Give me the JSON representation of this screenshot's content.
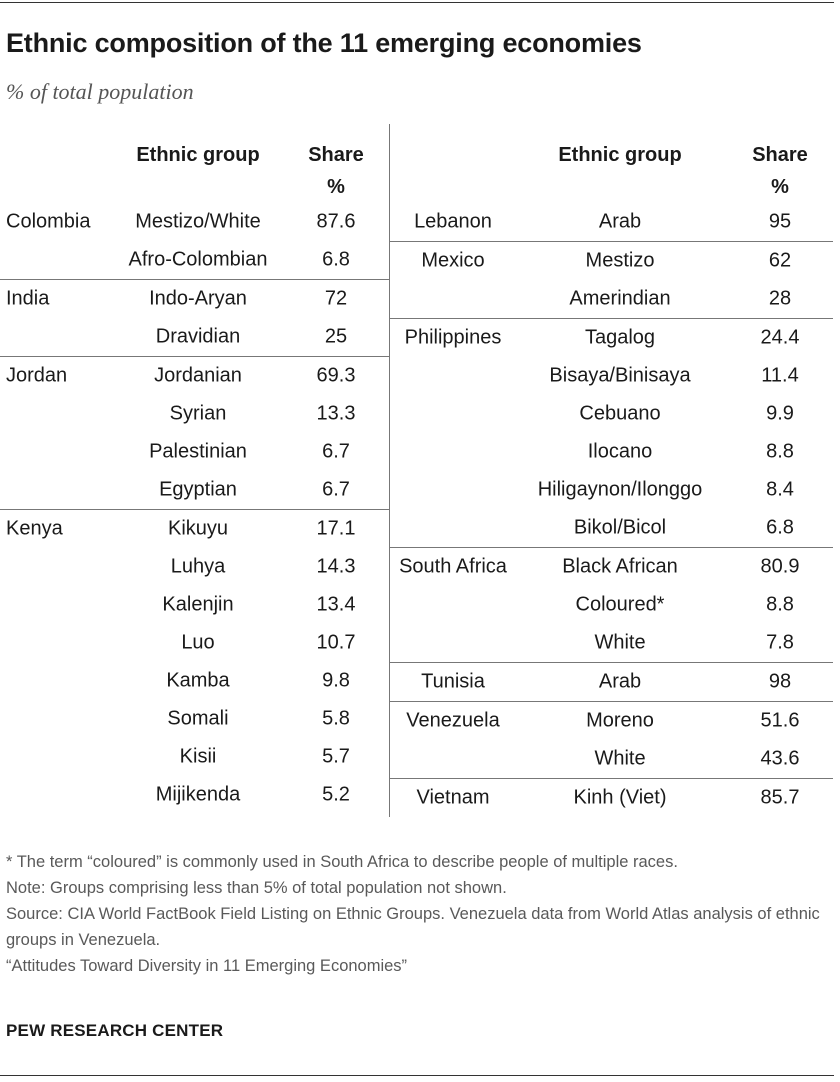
{
  "title": "Ethnic composition of the 11 emerging economies",
  "subtitle": "% of total population",
  "columns": {
    "group": "Ethnic group",
    "share": "Share",
    "unit": "%"
  },
  "chart_data": {
    "type": "table",
    "left": [
      {
        "country": "Colombia",
        "groups": [
          {
            "name": "Mestizo/White",
            "share": "87.6"
          },
          {
            "name": "Afro-Colombian",
            "share": "6.8"
          }
        ]
      },
      {
        "country": "India",
        "groups": [
          {
            "name": "Indo-Aryan",
            "share": "72"
          },
          {
            "name": "Dravidian",
            "share": "25"
          }
        ]
      },
      {
        "country": "Jordan",
        "groups": [
          {
            "name": "Jordanian",
            "share": "69.3"
          },
          {
            "name": "Syrian",
            "share": "13.3"
          },
          {
            "name": "Palestinian",
            "share": "6.7"
          },
          {
            "name": "Egyptian",
            "share": "6.7"
          }
        ]
      },
      {
        "country": "Kenya",
        "groups": [
          {
            "name": "Kikuyu",
            "share": "17.1"
          },
          {
            "name": "Luhya",
            "share": "14.3"
          },
          {
            "name": "Kalenjin",
            "share": "13.4"
          },
          {
            "name": "Luo",
            "share": "10.7"
          },
          {
            "name": "Kamba",
            "share": "9.8"
          },
          {
            "name": "Somali",
            "share": "5.8"
          },
          {
            "name": "Kisii",
            "share": "5.7"
          },
          {
            "name": "Mijikenda",
            "share": "5.2"
          }
        ]
      }
    ],
    "right": [
      {
        "country": "Lebanon",
        "groups": [
          {
            "name": "Arab",
            "share": "95"
          }
        ]
      },
      {
        "country": "Mexico",
        "groups": [
          {
            "name": "Mestizo",
            "share": "62"
          },
          {
            "name": "Amerindian",
            "share": "28"
          }
        ]
      },
      {
        "country": "Philippines",
        "groups": [
          {
            "name": "Tagalog",
            "share": "24.4"
          },
          {
            "name": "Bisaya/Binisaya",
            "share": "11.4"
          },
          {
            "name": "Cebuano",
            "share": "9.9"
          },
          {
            "name": "Ilocano",
            "share": "8.8"
          },
          {
            "name": "Hiligaynon/Ilonggo",
            "share": "8.4"
          },
          {
            "name": "Bikol/Bicol",
            "share": "6.8"
          }
        ]
      },
      {
        "country": "South Africa",
        "groups": [
          {
            "name": "Black African",
            "share": "80.9"
          },
          {
            "name": "Coloured*",
            "share": "8.8"
          },
          {
            "name": "White",
            "share": "7.8"
          }
        ]
      },
      {
        "country": "Tunisia",
        "groups": [
          {
            "name": "Arab",
            "share": "98"
          }
        ]
      },
      {
        "country": "Venezuela",
        "groups": [
          {
            "name": "Moreno",
            "share": "51.6"
          },
          {
            "name": "White",
            "share": "43.6"
          }
        ]
      },
      {
        "country": "Vietnam",
        "groups": [
          {
            "name": "Kinh (Viet)",
            "share": "85.7"
          }
        ]
      }
    ]
  },
  "footnotes": [
    "* The term “coloured” is commonly used in South Africa to describe people of multiple races.",
    "Note: Groups comprising less than 5% of total population not shown.",
    "Source: CIA World FactBook Field Listing on Ethnic Groups. Venezuela data from World Atlas analysis of ethnic groups in Venezuela.",
    "“Attitudes Toward Diversity in 11 Emerging Economies”"
  ],
  "brand": "PEW RESEARCH CENTER"
}
